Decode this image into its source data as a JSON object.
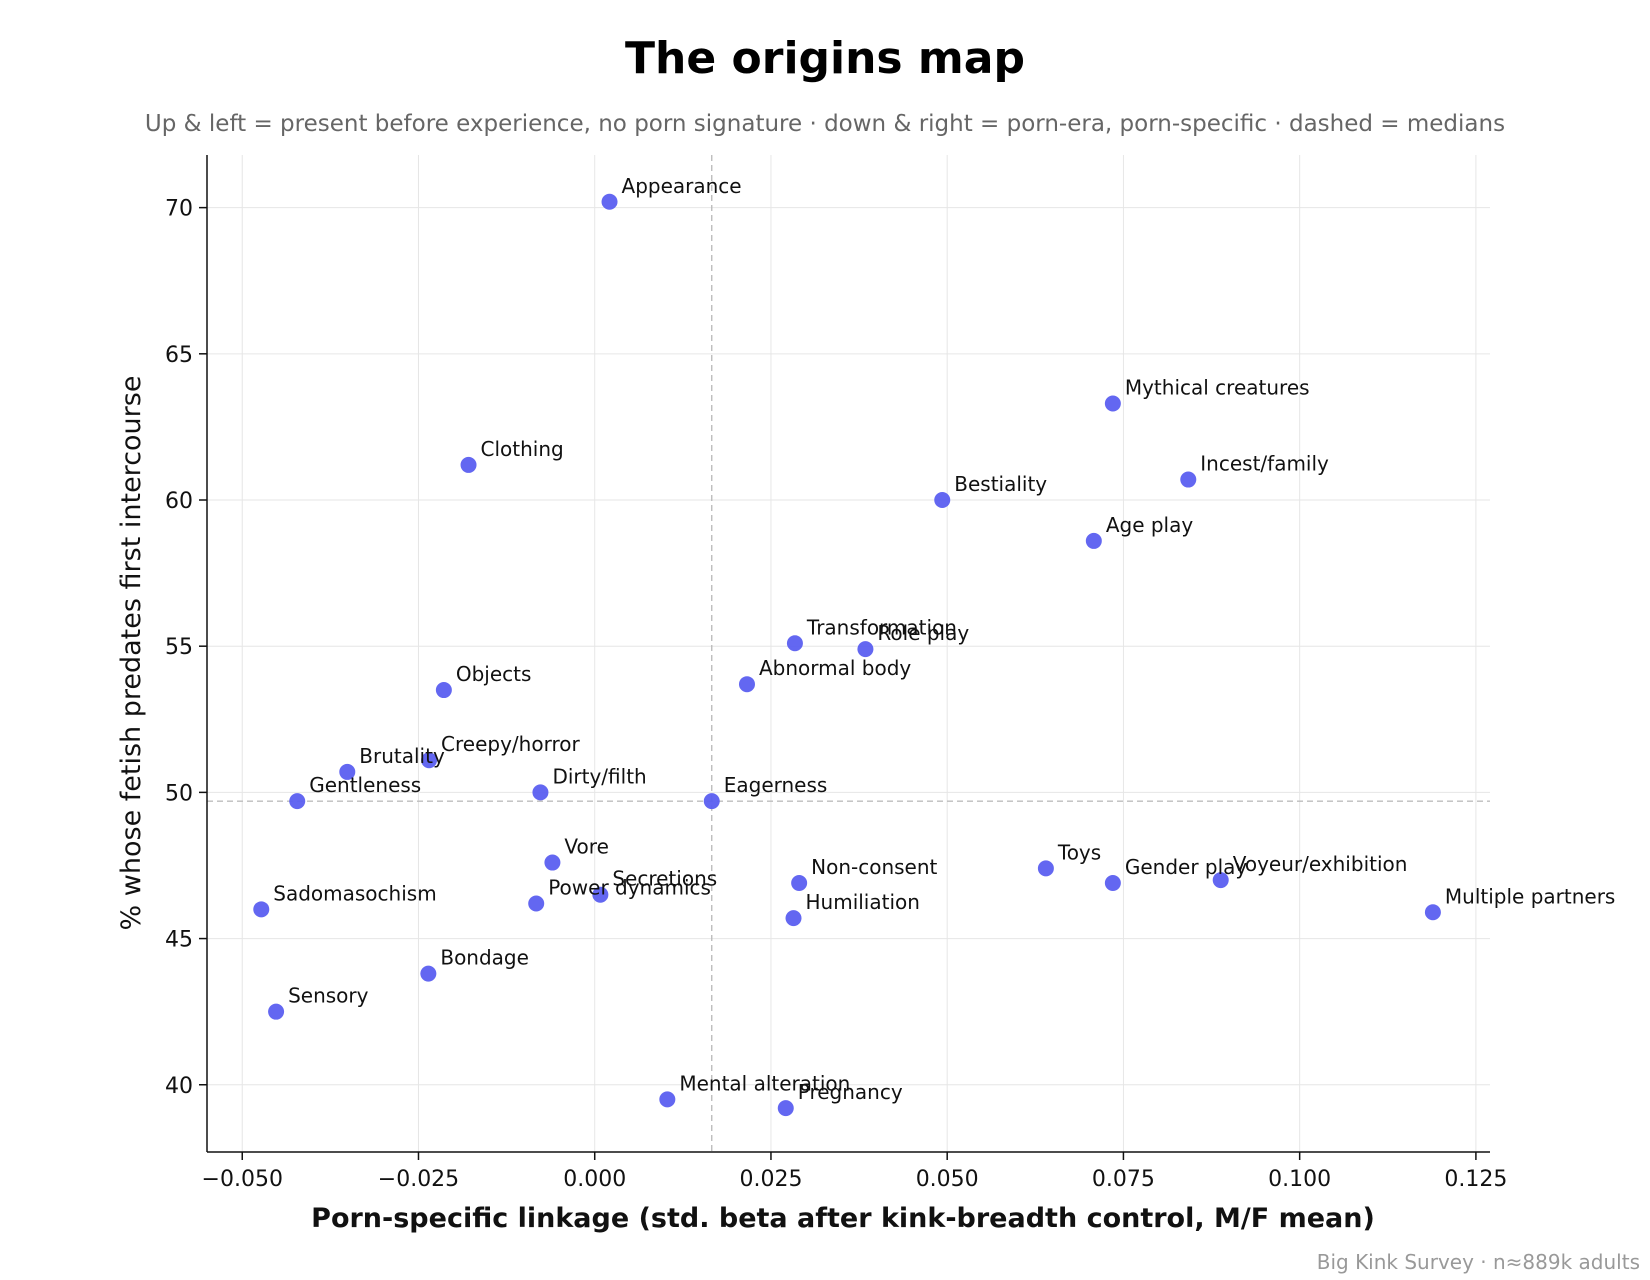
{
  "chart_data": {
    "type": "scatter",
    "title": "The origins map",
    "subtitle": "Up & left = present before experience, no porn signature · down & right = porn-era, porn-specific · dashed = medians",
    "xlabel": "Porn-specific linkage (std. beta after kink-breadth control, M/F mean)",
    "ylabel": "% whose fetish predates first intercourse",
    "footer": "Big Kink Survey · n≈889k adults",
    "xlim": [
      -0.055,
      0.127
    ],
    "ylim": [
      37.7,
      71.8
    ],
    "xticks": [
      -0.05,
      -0.025,
      0.0,
      0.025,
      0.05,
      0.075,
      0.1,
      0.125
    ],
    "xtick_labels": [
      "−0.050",
      "−0.025",
      "0.000",
      "0.025",
      "0.050",
      "0.075",
      "0.100",
      "0.125"
    ],
    "yticks": [
      40,
      45,
      50,
      55,
      60,
      65,
      70
    ],
    "ytick_labels": [
      "40",
      "45",
      "50",
      "55",
      "60",
      "65",
      "70"
    ],
    "grid": true,
    "median_x": 0.0166,
    "median_y": 49.7,
    "point_color": "#5b5ff0",
    "points": [
      {
        "label": "Appearance",
        "x": 0.0021,
        "y": 70.2
      },
      {
        "label": "Mythical creatures",
        "x": 0.0735,
        "y": 63.3
      },
      {
        "label": "Clothing",
        "x": -0.0179,
        "y": 61.2
      },
      {
        "label": "Incest/family",
        "x": 0.0842,
        "y": 60.7
      },
      {
        "label": "Bestiality",
        "x": 0.0493,
        "y": 60.0
      },
      {
        "label": "Age play",
        "x": 0.0708,
        "y": 58.6
      },
      {
        "label": "Transformation",
        "x": 0.0284,
        "y": 55.1
      },
      {
        "label": "Role play",
        "x": 0.0384,
        "y": 54.9
      },
      {
        "label": "Abnormal body",
        "x": 0.0216,
        "y": 53.7
      },
      {
        "label": "Objects",
        "x": -0.0214,
        "y": 53.5
      },
      {
        "label": "Creepy/horror",
        "x": -0.0235,
        "y": 51.1
      },
      {
        "label": "Brutality",
        "x": -0.0351,
        "y": 50.7
      },
      {
        "label": "Dirty/filth",
        "x": -0.0077,
        "y": 50.0
      },
      {
        "label": "Gentleness",
        "x": -0.0422,
        "y": 49.7
      },
      {
        "label": "Eagerness",
        "x": 0.0166,
        "y": 49.7
      },
      {
        "label": "Vore",
        "x": -0.006,
        "y": 47.6
      },
      {
        "label": "Toys",
        "x": 0.064,
        "y": 47.4
      },
      {
        "label": "Voyeur/exhibition",
        "x": 0.0888,
        "y": 47.0
      },
      {
        "label": "Gender play",
        "x": 0.0735,
        "y": 46.9
      },
      {
        "label": "Non-consent",
        "x": 0.029,
        "y": 46.9
      },
      {
        "label": "Secretions",
        "x": 0.0008,
        "y": 46.5
      },
      {
        "label": "Power dynamics",
        "x": -0.0083,
        "y": 46.2
      },
      {
        "label": "Sadomasochism",
        "x": -0.0473,
        "y": 46.0
      },
      {
        "label": "Multiple partners",
        "x": 0.1189,
        "y": 45.9
      },
      {
        "label": "Humiliation",
        "x": 0.0282,
        "y": 45.7
      },
      {
        "label": "Bondage",
        "x": -0.0236,
        "y": 43.8
      },
      {
        "label": "Sensory",
        "x": -0.0452,
        "y": 42.5
      },
      {
        "label": "Mental alteration",
        "x": 0.0103,
        "y": 39.5
      },
      {
        "label": "Pregnancy",
        "x": 0.0271,
        "y": 39.2
      }
    ]
  }
}
